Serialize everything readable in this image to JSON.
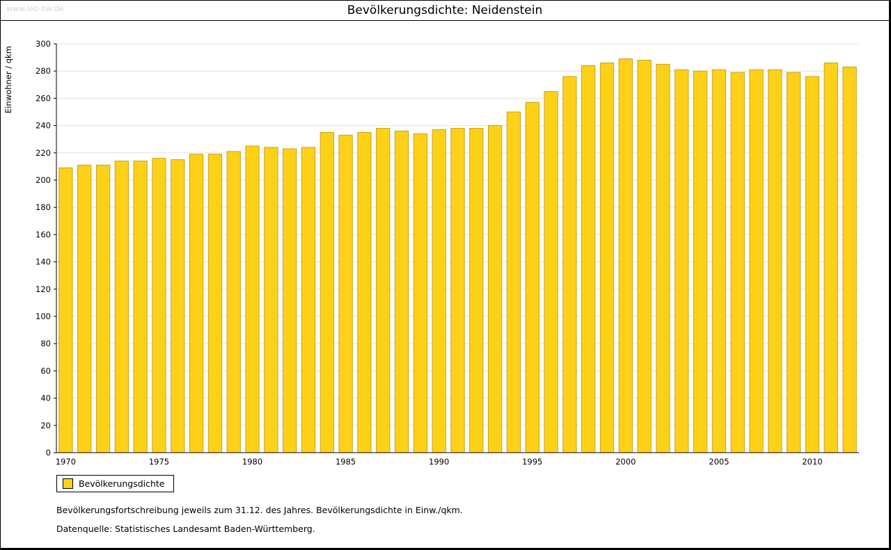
{
  "page": {
    "watermark": "www.leo-bw.de",
    "title": "Bevölkerungsdichte: Neidenstein",
    "legend_label": "Bevölkerungsdichte",
    "footnote_method": "Bevölkerungsfortschreibung jeweils zum 31.12. des Jahres. Bevölkerungsdichte in Einw./qkm.",
    "footnote_source": "Datenquelle: Statistisches Landesamt Baden-Württemberg."
  },
  "chart_data": {
    "type": "bar",
    "title": "Bevölkerungsdichte: Neidenstein",
    "xlabel": "",
    "ylabel": "Einwohner / qkm",
    "ylim": [
      0,
      300
    ],
    "ytick_step": 20,
    "grid": true,
    "legend": [
      "Bevölkerungsdichte"
    ],
    "legend_position": "bottom-left",
    "bar_color": "#FCD117",
    "bar_border_color": "#C9A227",
    "x_label_every": 5,
    "categories": [
      1970,
      1971,
      1972,
      1973,
      1974,
      1975,
      1976,
      1977,
      1978,
      1979,
      1980,
      1981,
      1982,
      1983,
      1984,
      1985,
      1986,
      1987,
      1988,
      1989,
      1990,
      1991,
      1992,
      1993,
      1994,
      1995,
      1996,
      1997,
      1998,
      1999,
      2000,
      2001,
      2002,
      2003,
      2004,
      2005,
      2006,
      2007,
      2008,
      2009,
      2010,
      2011,
      2012
    ],
    "values": [
      209,
      211,
      211,
      214,
      214,
      216,
      215,
      219,
      219,
      221,
      225,
      224,
      223,
      224,
      235,
      233,
      235,
      238,
      236,
      234,
      237,
      238,
      238,
      240,
      250,
      257,
      265,
      276,
      284,
      286,
      289,
      288,
      285,
      281,
      280,
      281,
      279,
      281,
      281,
      279,
      276,
      286,
      283
    ]
  }
}
